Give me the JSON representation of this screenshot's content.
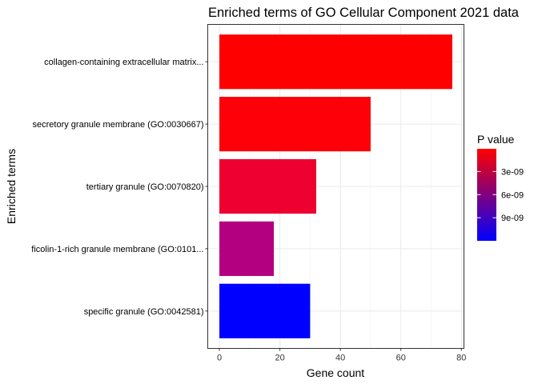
{
  "chart_data": {
    "type": "bar",
    "orientation": "horizontal",
    "title": "Enriched terms of GO Cellular Component 2021 data",
    "xlabel": "Gene count",
    "ylabel": "Enriched terms",
    "categories": [
      "collagen-containing extracellular matrix...",
      "secretory granule membrane (GO:0030667)",
      "tertiary granule (GO:0070820)",
      "ficolin-1-rich granule membrane (GO:0101...",
      "specific granule (GO:0042581)"
    ],
    "values": [
      77,
      50,
      32,
      18,
      30
    ],
    "p_values": [
      5e-11,
      2e-10,
      2.3e-09,
      6e-09,
      1.2e-08
    ],
    "bar_colors": [
      "#ff0000",
      "#fe0008",
      "#ee0030",
      "#b30080",
      "#0000ff"
    ],
    "xlim": [
      -3.85,
      80.85
    ],
    "xticks": [
      0,
      20,
      40,
      60,
      80
    ],
    "grid": true,
    "legend": {
      "title": "P value",
      "position": "right",
      "type": "colorbar",
      "low_color": "#ff0000",
      "high_color": "#0000ff",
      "ticks": [
        {
          "label": "3e-09",
          "value": 3e-09
        },
        {
          "label": "6e-09",
          "value": 6e-09
        },
        {
          "label": "9e-09",
          "value": 9e-09
        }
      ],
      "range": [
        5e-11,
        1.2e-08
      ]
    }
  }
}
